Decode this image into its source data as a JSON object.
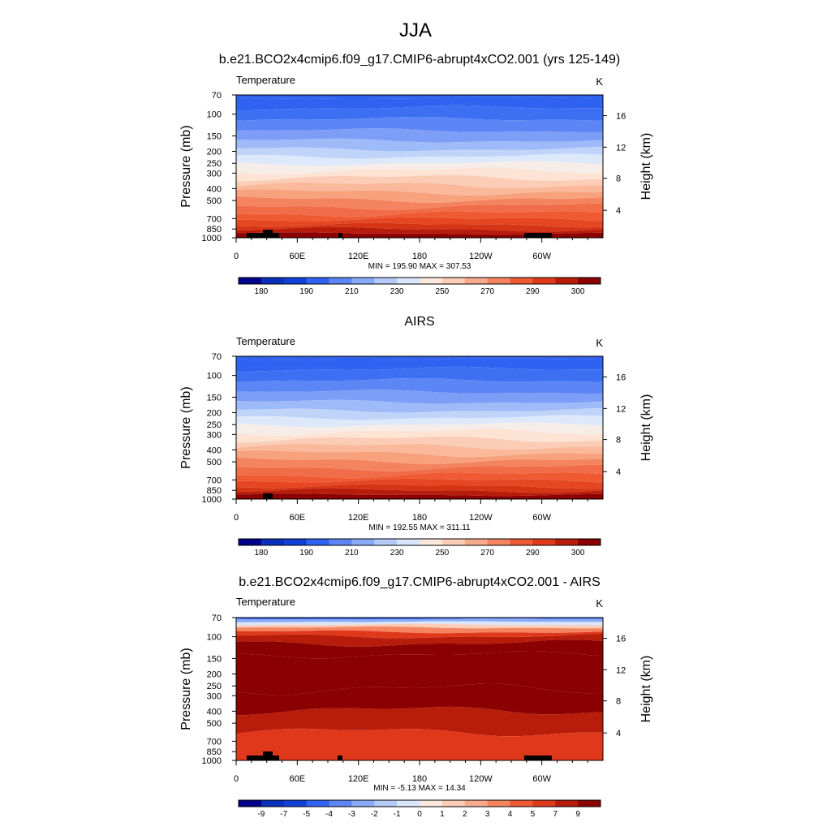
{
  "figure": {
    "title": "JJA"
  },
  "chart_data": [
    {
      "type": "heatmap",
      "panel_title": "b.e21.BCO2x4cmip6.f09_g17.CMIP6-abrupt4xCO2.001 (yrs 125-149)",
      "variable": "Temperature",
      "units": "K",
      "ylabel": "Pressure (mb)",
      "y2label": "Height (km)",
      "x_ticks": [
        "0",
        "60E",
        "120E",
        "180",
        "120W",
        "60W"
      ],
      "y_ticks": [
        "70",
        "100",
        "150",
        "200",
        "250",
        "300",
        "400",
        "500",
        "700",
        "850",
        "1000"
      ],
      "y2_ticks": [
        "16",
        "12",
        "8",
        "4"
      ],
      "x_range": [
        0,
        360
      ],
      "y_range": [
        70,
        1000
      ],
      "y_scale": "log",
      "stats": "MIN = 195.90  MAX = 307.53",
      "colorbar_labels": [
        "180",
        "190",
        "210",
        "230",
        "250",
        "270",
        "290",
        "300"
      ]
    },
    {
      "type": "heatmap",
      "panel_title": "AIRS",
      "variable": "Temperature",
      "units": "K",
      "ylabel": "Pressure (mb)",
      "y2label": "Height (km)",
      "x_ticks": [
        "0",
        "60E",
        "120E",
        "180",
        "120W",
        "60W"
      ],
      "y_ticks": [
        "70",
        "100",
        "150",
        "200",
        "250",
        "300",
        "400",
        "500",
        "700",
        "850",
        "1000"
      ],
      "y2_ticks": [
        "16",
        "12",
        "8",
        "4"
      ],
      "x_range": [
        0,
        360
      ],
      "y_range": [
        70,
        1000
      ],
      "y_scale": "log",
      "stats": "MIN = 192.55  MAX = 311.11",
      "colorbar_labels": [
        "180",
        "190",
        "210",
        "230",
        "250",
        "270",
        "290",
        "300"
      ]
    },
    {
      "type": "heatmap",
      "panel_title": "b.e21.BCO2x4cmip6.f09_g17.CMIP6-abrupt4xCO2.001 - AIRS",
      "variable": "Temperature",
      "units": "K",
      "ylabel": "Pressure (mb)",
      "y2label": "Height (km)",
      "x_ticks": [
        "0",
        "60E",
        "120E",
        "180",
        "120W",
        "60W"
      ],
      "y_ticks": [
        "70",
        "100",
        "150",
        "200",
        "250",
        "300",
        "400",
        "500",
        "700",
        "850",
        "1000"
      ],
      "y2_ticks": [
        "16",
        "12",
        "8",
        "4"
      ],
      "x_range": [
        0,
        360
      ],
      "y_range": [
        70,
        1000
      ],
      "y_scale": "log",
      "stats": "MIN = -5.13  MAX = 14.34",
      "colorbar_labels": [
        "-9",
        "-7",
        "-5",
        "-4",
        "-3",
        "-2",
        "-1",
        "0",
        "1",
        "2",
        "3",
        "4",
        "5",
        "7",
        "9"
      ]
    }
  ],
  "palette": {
    "levels_16": [
      "#00008b",
      "#0a2fb8",
      "#1040d8",
      "#2f62f0",
      "#5c85f5",
      "#89aaf7",
      "#b4cbf9",
      "#d9e6fb",
      "#fce8dd",
      "#fbcdb6",
      "#f8ab8c",
      "#f48460",
      "#ef5a33",
      "#e0381b",
      "#b81c0a",
      "#8b0000"
    ],
    "temperature_bands_top_to_bottom": [
      "#3060ec",
      "#2f62f0",
      "#3d6ff2",
      "#5c85f5",
      "#7d9ef6",
      "#9fbaf8",
      "#c0d4fa",
      "#dee8fb",
      "#f7ede8",
      "#fde3d4",
      "#fbcdb6",
      "#f9b99a",
      "#f8a17d",
      "#f48460",
      "#f16c48",
      "#ef5a33",
      "#e54722",
      "#d63515",
      "#b81c0a",
      "#8b0000"
    ],
    "difference_bands_top_to_bottom": [
      "#2f62f0",
      "#89aaf7",
      "#d9e6fb",
      "#fbcdb6",
      "#f48460",
      "#e0381b",
      "#b81c0a",
      "#8b0000",
      "#8b0000",
      "#8b0000",
      "#b81c0a",
      "#e0381b"
    ]
  }
}
